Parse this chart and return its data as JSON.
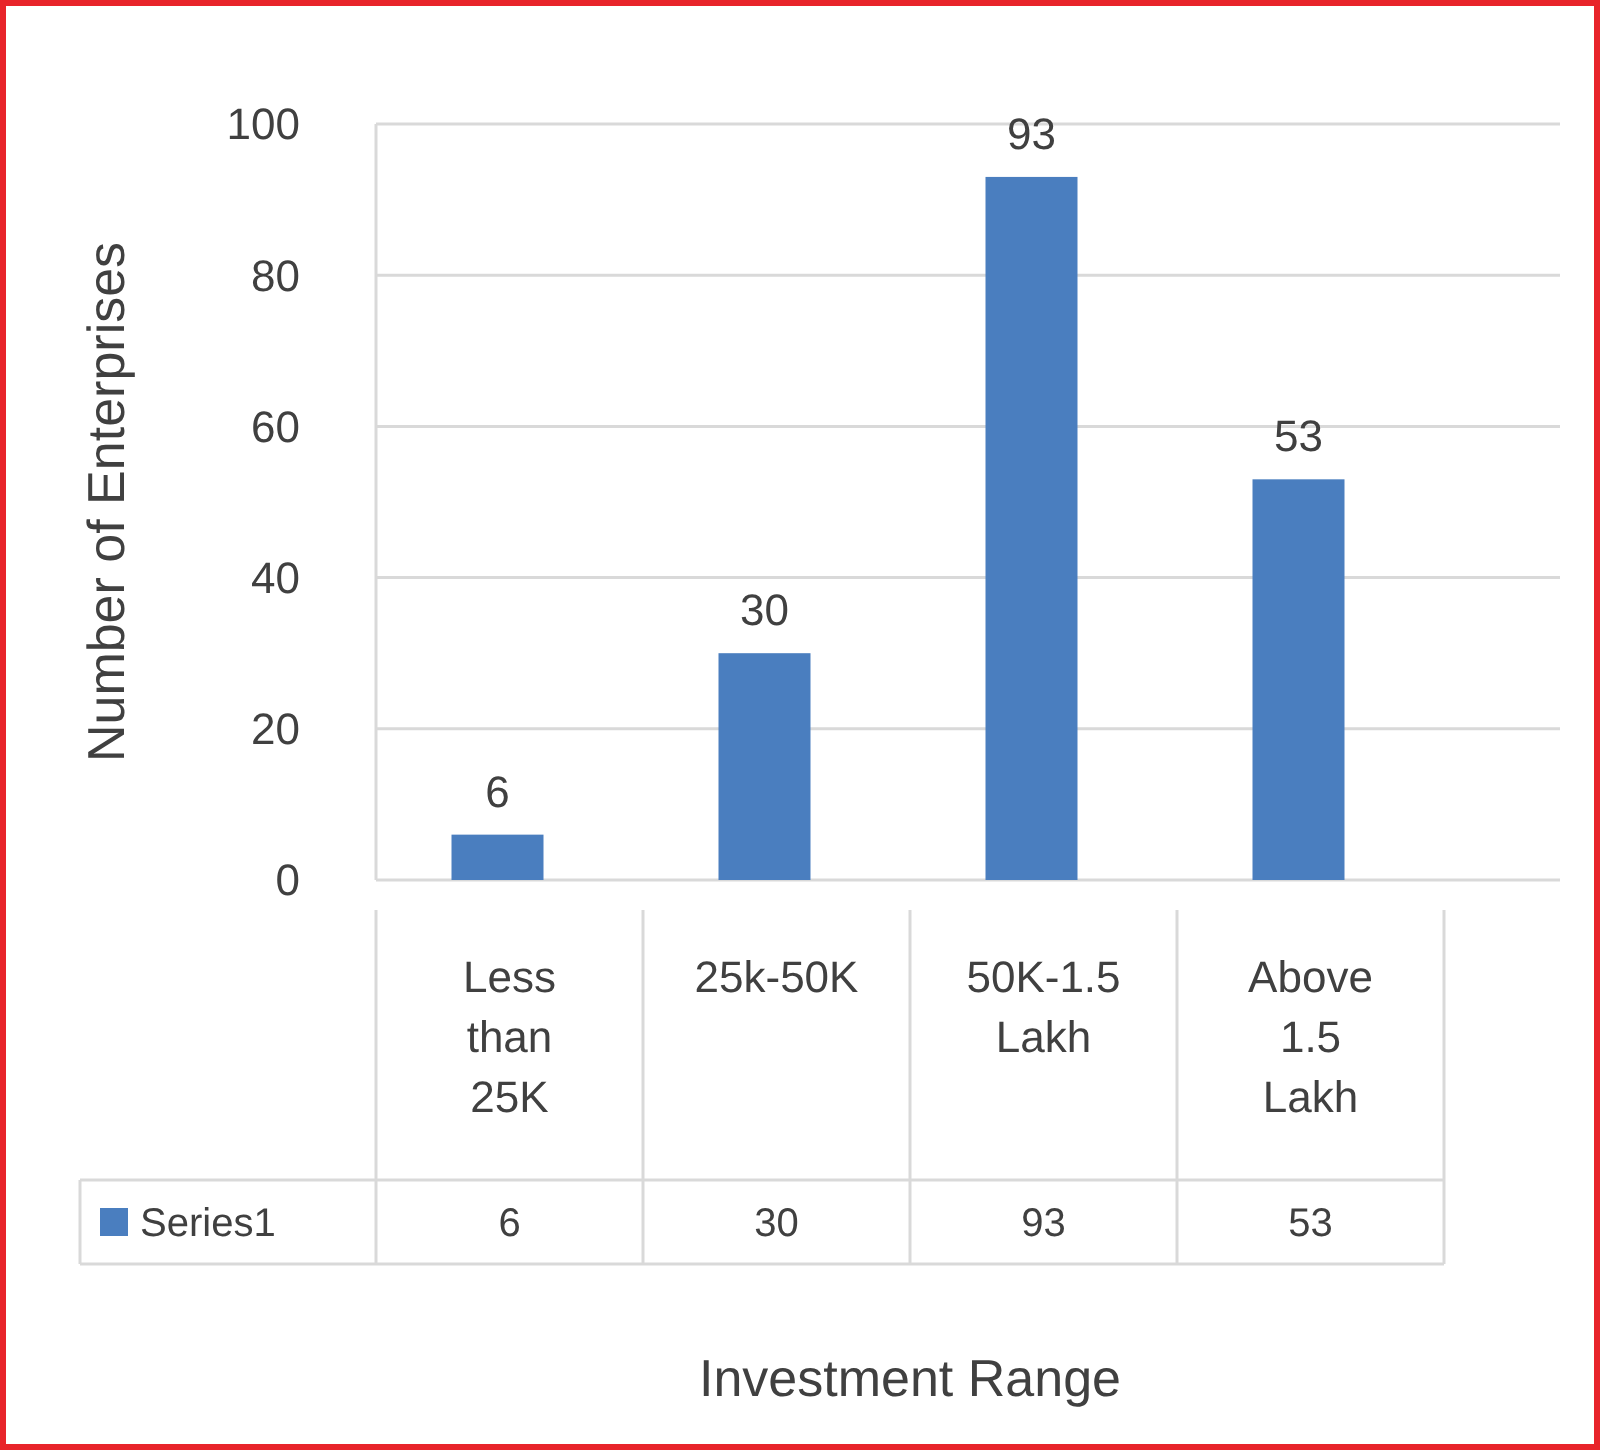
{
  "chart_data": {
    "type": "bar",
    "xlabel": "Investment Range",
    "ylabel": "Number of Enterprises",
    "categories": [
      "Less than 25K",
      "25k-50K",
      "50K-1.5 Lakh",
      "Above 1.5 Lakh"
    ],
    "series": [
      {
        "name": "Series1",
        "color": "#4a7ebf",
        "values": [
          6,
          30,
          93,
          53
        ]
      }
    ],
    "annotations": [
      "6",
      "30",
      "93",
      "53"
    ],
    "ylim": [
      0,
      100
    ],
    "yticks": [
      0,
      20,
      40,
      60,
      80,
      100
    ],
    "grid": "y",
    "legend": "bottom",
    "data_labels": true
  }
}
